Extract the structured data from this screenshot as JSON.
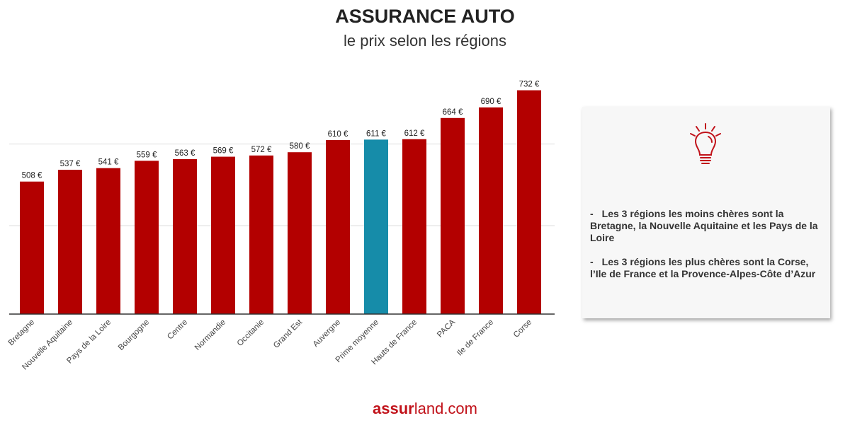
{
  "header": {
    "title": "ASSURANCE AUTO",
    "subtitle": "le prix selon les régions"
  },
  "chart_data": {
    "type": "bar",
    "title": "ASSURANCE AUTO",
    "subtitle": "le prix selon les régions",
    "xlabel": "",
    "ylabel": "",
    "categories": [
      "Bretagne",
      "Nouvelle Aquitaine",
      "Pays de la Loire",
      "Bourgogne",
      "Centre",
      "Normandie",
      "Occitanie",
      "Grand Est",
      "Auvergne",
      "Prime moyenne",
      "Hauts de France",
      "PACA",
      "Ile de France",
      "Corse"
    ],
    "values": [
      508,
      537,
      541,
      559,
      563,
      569,
      572,
      580,
      610,
      611,
      612,
      664,
      690,
      732
    ],
    "value_labels": [
      "508 €",
      "537 €",
      "541 €",
      "559 €",
      "563 €",
      "569 €",
      "572 €",
      "580 €",
      "610 €",
      "611 €",
      "612 €",
      "664 €",
      "690 €",
      "732 €"
    ],
    "highlight_index": 9,
    "ylim": [
      183,
      740
    ],
    "gridlines": [
      400,
      600
    ],
    "grid": true,
    "colors": {
      "bar": "#b30000",
      "highlight": "#168ca9",
      "grid": "#dddddd",
      "axis": "#333333"
    }
  },
  "info_card": {
    "icon": "lightbulb-icon",
    "icon_color": "#c1121a",
    "notes": [
      {
        "dash": "-",
        "text": "Les 3 régions les moins chères sont la Bretagne, la Nouvelle Aquitaine et les Pays de la Loire"
      },
      {
        "dash": "-",
        "text": "Les 3 régions les plus chères sont la Corse, l’Ile de France et la Provence-Alpes-Côte d’Azur"
      }
    ]
  },
  "footer": {
    "logo_bold": "assur",
    "logo_rest": "land.com"
  }
}
